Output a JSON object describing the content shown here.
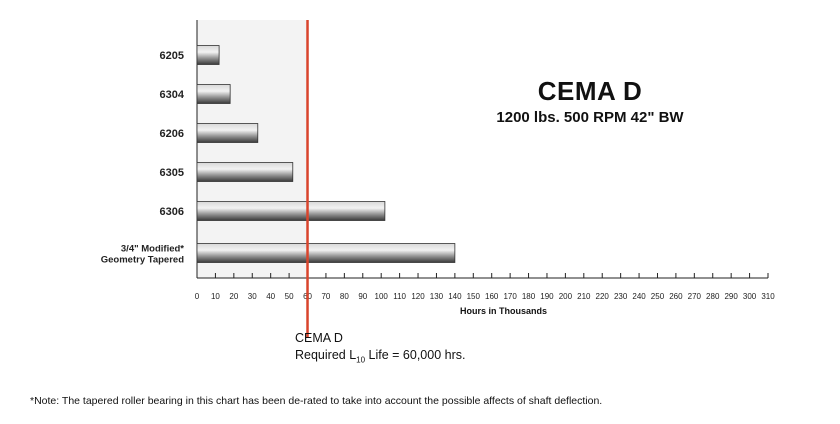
{
  "chart_data": {
    "type": "bar",
    "orientation": "horizontal",
    "title": "CEMA D",
    "subtitle": "1200 lbs.  500 RPM  42\" BW",
    "xlabel": "Hours in Thousands",
    "ylabel": "",
    "categories": [
      "6205",
      "6304",
      "6206",
      "6305",
      "6306",
      "3/4\" Modified* Geometry Tapered"
    ],
    "category_lines": [
      [
        "6205"
      ],
      [
        "6304"
      ],
      [
        "6206"
      ],
      [
        "6305"
      ],
      [
        "6306"
      ],
      [
        "3/4\" Modified*",
        "Geometry Tapered"
      ]
    ],
    "values": [
      12,
      18,
      33,
      52,
      102,
      140
    ],
    "xlim": [
      0,
      310
    ],
    "xticks": [
      0,
      10,
      20,
      30,
      40,
      50,
      60,
      70,
      80,
      90,
      100,
      110,
      120,
      130,
      140,
      150,
      160,
      170,
      180,
      190,
      200,
      210,
      220,
      230,
      240,
      250,
      260,
      270,
      280,
      290,
      300,
      310
    ],
    "reference_line": {
      "value": 60,
      "label": "CEMA D",
      "note_prefix": "Required L",
      "note_subscript": "10",
      "note_suffix": " Life = 60,000 hrs.",
      "color": "#d9442c"
    },
    "shaded_region": [
      0,
      60
    ],
    "grid": false
  },
  "footnote": "*Note: The tapered roller bearing in this chart has been de-rated to take into account the possible affects of shaft deflection.",
  "colors": {
    "bar_dark": "#4a4a4a",
    "bar_light": "#e8e8e8",
    "shade": "#f3f3f3",
    "ref_line": "#d9442c"
  }
}
